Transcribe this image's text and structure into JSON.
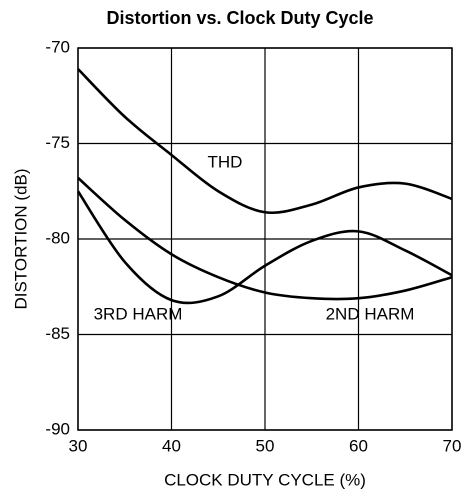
{
  "chart_data": {
    "type": "line",
    "title": "Distortion vs. Clock Duty Cycle",
    "x_label": "CLOCK DUTY CYCLE (%)",
    "y_label": "DISTORTION  (dB)",
    "x": [
      30,
      35,
      40,
      45,
      50,
      55,
      60,
      65,
      70
    ],
    "series": [
      {
        "name": "THD",
        "color": "#000000",
        "values": [
          -71.1,
          -73.6,
          -75.6,
          -77.5,
          -78.6,
          -78.2,
          -77.3,
          -77.1,
          -77.9
        ]
      },
      {
        "name": "2ND HARM",
        "color": "#000000",
        "values": [
          -76.8,
          -79.0,
          -80.8,
          -82.0,
          -82.8,
          -83.1,
          -83.1,
          -82.7,
          -82.0
        ]
      },
      {
        "name": "3RD HARM",
        "color": "#000000",
        "values": [
          -77.5,
          -81.2,
          -83.2,
          -83.0,
          -81.4,
          -80.1,
          -79.6,
          -80.6,
          -81.9
        ]
      }
    ],
    "xlim": [
      30,
      70
    ],
    "xticks": [
      30,
      40,
      50,
      60,
      70
    ],
    "ylim": [
      -90,
      -70
    ],
    "yticks": [
      -90,
      -85,
      -80,
      -75,
      -70
    ],
    "grid": true
  }
}
